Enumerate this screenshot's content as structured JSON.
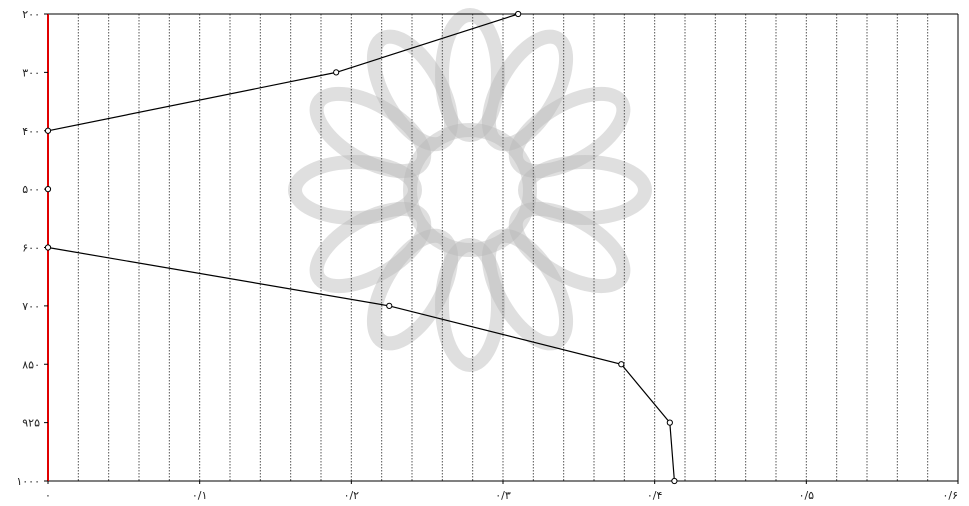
{
  "chart_data": {
    "type": "line",
    "title": "",
    "xlabel": "",
    "ylabel": "",
    "xlim": [
      0,
      0.6
    ],
    "ylim": [
      200,
      1000
    ],
    "y_inverted": true,
    "y_categorical_levels": [
      200,
      300,
      400,
      500,
      600,
      700,
      850,
      925,
      1000
    ],
    "x_ticks": [
      {
        "value": 0,
        "label": "۰"
      },
      {
        "value": 0.1,
        "label": "۰/۱"
      },
      {
        "value": 0.2,
        "label": "۰/۲"
      },
      {
        "value": 0.3,
        "label": "۰/۳"
      },
      {
        "value": 0.4,
        "label": "۰/۴"
      },
      {
        "value": 0.5,
        "label": "۰/۵"
      },
      {
        "value": 0.6,
        "label": "۰/۶"
      }
    ],
    "y_ticks": [
      {
        "value": 200,
        "label": "۲۰۰"
      },
      {
        "value": 300,
        "label": "۳۰۰"
      },
      {
        "value": 400,
        "label": "۴۰۰"
      },
      {
        "value": 500,
        "label": "۵۰۰"
      },
      {
        "value": 600,
        "label": "۶۰۰"
      },
      {
        "value": 700,
        "label": "۷۰۰"
      },
      {
        "value": 850,
        "label": "۸۵۰"
      },
      {
        "value": 925,
        "label": "۹۲۵"
      },
      {
        "value": 1000,
        "label": "۱۰۰۰"
      }
    ],
    "grid": "vertical-dotted",
    "legend": "none",
    "series": [
      {
        "points": [
          {
            "x": 0.31,
            "y": 200
          },
          {
            "x": 0.19,
            "y": 300
          },
          {
            "x": 0.0,
            "y": 400
          }
        ]
      },
      {
        "points": [
          {
            "x": 0.0,
            "y": 500
          }
        ]
      },
      {
        "points": [
          {
            "x": 0.0,
            "y": 600
          },
          {
            "x": 0.225,
            "y": 700
          },
          {
            "x": 0.378,
            "y": 850
          },
          {
            "x": 0.41,
            "y": 925
          },
          {
            "x": 0.413,
            "y": 1000
          }
        ]
      }
    ],
    "colors": {
      "line": "#000000",
      "axis_left": "#e00000",
      "grid": "#555555",
      "watermark": "#b8b8b8"
    }
  }
}
